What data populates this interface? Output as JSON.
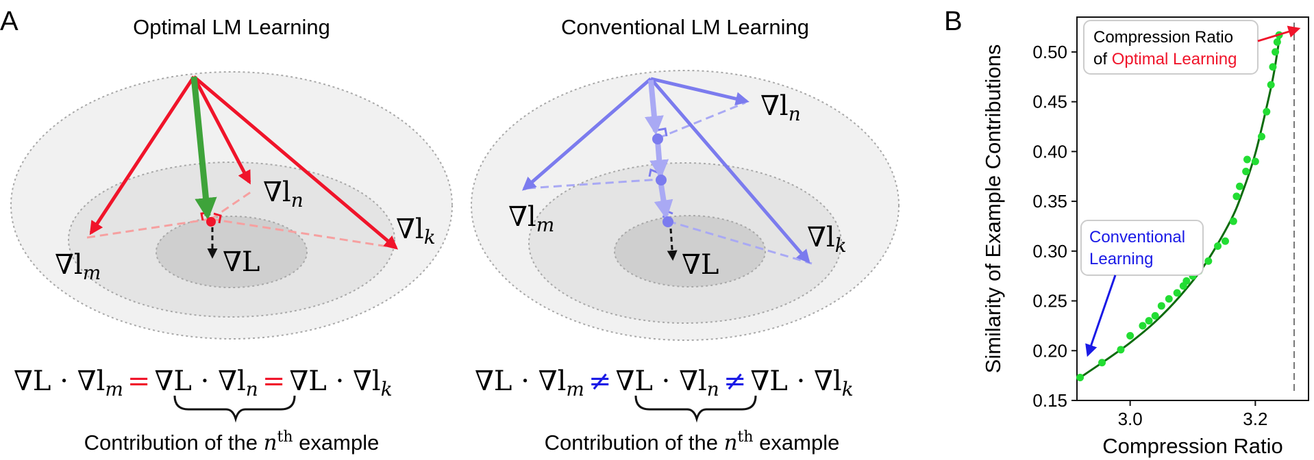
{
  "panel_a": {
    "letter": "A",
    "left": {
      "title": "Optimal LM Learning",
      "label_lm": "∇l",
      "label_lm_sub": "m",
      "label_ln": "∇l",
      "label_ln_sub": "n",
      "label_lk": "∇l",
      "label_lk_sub": "k",
      "label_L": "∇L",
      "eq_terms": [
        "∇L · ∇l",
        "m",
        "=",
        "∇L · ∇l",
        "n",
        "=",
        "∇L · ∇l",
        "k"
      ],
      "caption_pre": "Contribution of the ",
      "caption_var": "n",
      "caption_sup": "th",
      "caption_post": " example"
    },
    "right": {
      "title": "Conventional LM Learning",
      "label_lm": "∇l",
      "label_lm_sub": "m",
      "label_ln": "∇l",
      "label_ln_sub": "n",
      "label_lk": "∇l",
      "label_lk_sub": "k",
      "label_L": "∇L",
      "eq_terms": [
        "∇L · ∇l",
        "m",
        "≠",
        "∇L · ∇l",
        "n",
        "≠",
        "∇L · ∇l",
        "k"
      ],
      "caption_pre": "Contribution of the ",
      "caption_var": "n",
      "caption_sup": "th",
      "caption_post": " example"
    }
  },
  "panel_b": {
    "letter": "B",
    "annotation_optimal_line1": "Compression Ratio",
    "annotation_optimal_line2_pre": "of ",
    "annotation_optimal_line2_red": "Optimal Learning",
    "annotation_conventional_line1": "Conventional",
    "annotation_conventional_line2": "Learning"
  },
  "colors": {
    "red": "#f0142a",
    "green": "#3ea33a",
    "blue": "#7b7bee",
    "light_blue": "#a9a9f4",
    "dark_green": "#0c6b0c",
    "points": "#22dd33",
    "annot_blue": "#1a1ae6"
  },
  "chart_data": {
    "type": "scatter",
    "title": "",
    "xlabel": "Compression Ratio",
    "ylabel": "Similarity of Example Contributions",
    "xlim": [
      2.915,
      3.285
    ],
    "ylim": [
      0.15,
      0.535
    ],
    "xticks": [
      3.0,
      3.2
    ],
    "xtick_labels": [
      "3.0",
      "3.2"
    ],
    "yticks": [
      0.15,
      0.2,
      0.25,
      0.3,
      0.35,
      0.4,
      0.45,
      0.5
    ],
    "ytick_labels": [
      "0.15",
      "0.20",
      "0.25",
      "0.30",
      "0.35",
      "0.40",
      "0.45",
      "0.50"
    ],
    "grid": false,
    "vline_x": 3.262,
    "points": [
      [
        2.92,
        0.173
      ],
      [
        2.955,
        0.188
      ],
      [
        2.985,
        0.201
      ],
      [
        3.0,
        0.215
      ],
      [
        3.02,
        0.225
      ],
      [
        3.03,
        0.23
      ],
      [
        3.04,
        0.235
      ],
      [
        3.05,
        0.245
      ],
      [
        3.062,
        0.252
      ],
      [
        3.075,
        0.258
      ],
      [
        3.085,
        0.265
      ],
      [
        3.09,
        0.27
      ],
      [
        3.1,
        0.275
      ],
      [
        3.11,
        0.28
      ],
      [
        3.125,
        0.29
      ],
      [
        3.14,
        0.305
      ],
      [
        3.152,
        0.31
      ],
      [
        3.165,
        0.33
      ],
      [
        3.17,
        0.355
      ],
      [
        3.175,
        0.365
      ],
      [
        3.185,
        0.38
      ],
      [
        3.187,
        0.392
      ],
      [
        3.2,
        0.39
      ],
      [
        3.21,
        0.415
      ],
      [
        3.218,
        0.44
      ],
      [
        3.225,
        0.467
      ],
      [
        3.228,
        0.485
      ],
      [
        3.232,
        0.5
      ],
      [
        3.235,
        0.51
      ],
      [
        3.238,
        0.517
      ]
    ],
    "fit_curve": [
      [
        2.92,
        0.173
      ],
      [
        2.96,
        0.19
      ],
      [
        3.0,
        0.208
      ],
      [
        3.04,
        0.229
      ],
      [
        3.08,
        0.255
      ],
      [
        3.12,
        0.287
      ],
      [
        3.16,
        0.33
      ],
      [
        3.18,
        0.36
      ],
      [
        3.2,
        0.398
      ],
      [
        3.22,
        0.45
      ],
      [
        3.23,
        0.48
      ],
      [
        3.24,
        0.52
      ]
    ]
  }
}
